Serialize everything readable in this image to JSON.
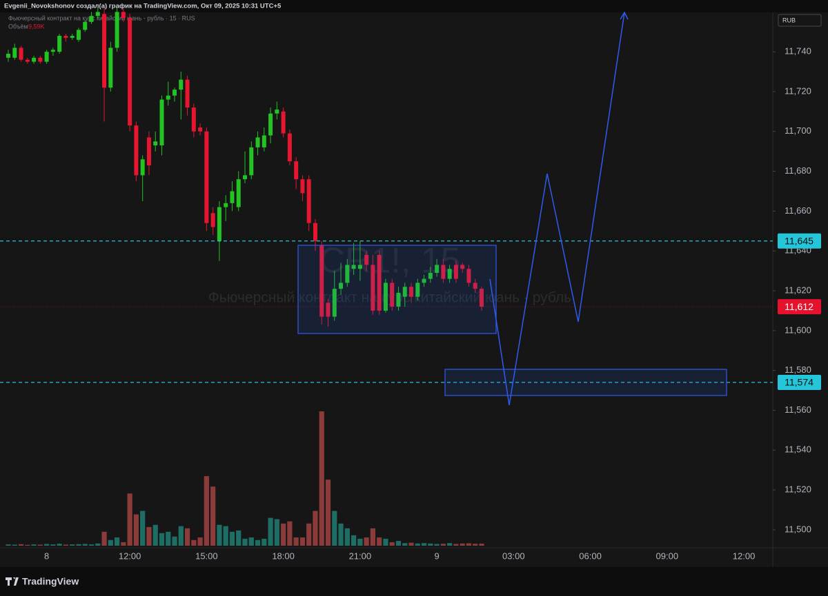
{
  "header": "Evgenii_Novokshonov создал(а) график на TradingView.com, Окт 09, 2025 10:31 UTC+5",
  "currency": "RUB",
  "brand": "TradingView",
  "chart_data": {
    "type": "candlestick",
    "title": "Фьючерсный контракт на курс китайский юань - рубль · 15 · RUS",
    "watermark_symbol": "CR1!, 15",
    "watermark_title": "Фьючерсный контракт на курс китайский юань - рубль",
    "volume_name": "Объём",
    "last_volume_label": "9,59K",
    "up_color": "#22c322",
    "down_color": "#e5162f",
    "volume_up_color": "#1f6e66",
    "volume_down_color": "#8c3b3b",
    "grid": false,
    "categories": [
      null,
      null,
      null,
      null,
      null,
      null,
      "8",
      null,
      null,
      null,
      null,
      null,
      null,
      null,
      null,
      null,
      null,
      null,
      null,
      "12:00",
      null,
      null,
      null,
      null,
      null,
      null,
      null,
      null,
      null,
      null,
      null,
      "15:00",
      null,
      null,
      null,
      null,
      null,
      null,
      null,
      null,
      null,
      null,
      null,
      "18:00",
      null,
      null,
      null,
      null,
      null,
      null,
      null,
      null,
      null,
      null,
      null,
      "21:00",
      null,
      null,
      null,
      null,
      null,
      null,
      null,
      null,
      null,
      null,
      null,
      "9",
      null,
      null,
      null,
      null,
      null,
      null,
      null
    ],
    "future_xticks": [
      "03:00",
      "06:00",
      "09:00",
      "12:00"
    ],
    "open": [
      11737,
      11737,
      11742,
      11736,
      11735,
      11737,
      11735,
      11740,
      11740,
      11748,
      11747,
      11746,
      11751,
      11755,
      11758,
      11759,
      11722,
      11742,
      11760,
      11757,
      11703,
      11678,
      11697,
      11693,
      11693,
      11716,
      11718,
      11721,
      11726,
      11712,
      11702,
      11700,
      11659,
      11645,
      11662,
      11664,
      11662,
      11676,
      11678,
      11692,
      11692,
      11698,
      11709,
      11710,
      11699,
      11685,
      11676,
      11676,
      11654,
      11643,
      11614,
      11607,
      11621,
      11624,
      11631,
      11631,
      11638,
      11633,
      11638,
      11610,
      11624,
      11612,
      11617,
      11622,
      11617,
      11624,
      11626,
      11629,
      11633,
      11626,
      11633,
      11633,
      11631,
      11624,
      11621
    ],
    "high": [
      11741,
      11744,
      11743,
      11737,
      11738,
      11738,
      11741,
      11742,
      11749,
      11749,
      11749,
      11752,
      11756,
      11760,
      11762,
      11762,
      11745,
      11762,
      11762,
      11759,
      11705,
      11688,
      11700,
      11700,
      11718,
      11725,
      11722,
      11730,
      11728,
      11714,
      11704,
      11702,
      11662,
      11665,
      11668,
      11675,
      11680,
      11690,
      11695,
      11700,
      11702,
      11712,
      11715,
      11712,
      11701,
      11687,
      11678,
      11678,
      11656,
      11645,
      11616,
      11630,
      11634,
      11636,
      11644,
      11645,
      11640,
      11638,
      11640,
      11626,
      11626,
      11622,
      11624,
      11624,
      11626,
      11628,
      11632,
      11636,
      11636,
      11633,
      11635,
      11634,
      11633,
      11626,
      11622
    ],
    "low": [
      11735,
      11736,
      11735,
      11734,
      11734,
      11734,
      11734,
      11738,
      11739,
      11745,
      11746,
      11745,
      11750,
      11754,
      11757,
      11705,
      11720,
      11740,
      11755,
      11700,
      11675,
      11665,
      11678,
      11690,
      11688,
      11713,
      11715,
      11706,
      11708,
      11697,
      11698,
      11650,
      11648,
      11635,
      11655,
      11660,
      11660,
      11674,
      11676,
      11688,
      11690,
      11694,
      11706,
      11697,
      11683,
      11671,
      11665,
      11650,
      11640,
      11603,
      11602,
      11605,
      11618,
      11622,
      11628,
      11625,
      11630,
      11608,
      11608,
      11609,
      11610,
      11610,
      11612,
      11614,
      11615,
      11622,
      11624,
      11627,
      11624,
      11624,
      11624,
      11629,
      11622,
      11619,
      11610
    ],
    "close": [
      11739,
      11742,
      11736,
      11735,
      11737,
      11735,
      11740,
      11741,
      11748,
      11747,
      11748,
      11751,
      11755,
      11758,
      11760,
      11722,
      11742,
      11760,
      11757,
      11703,
      11678,
      11686,
      11683,
      11695,
      11716,
      11718,
      11721,
      11726,
      11712,
      11700,
      11700,
      11654,
      11652,
      11662,
      11664,
      11670,
      11676,
      11678,
      11692,
      11697,
      11698,
      11709,
      11711,
      11699,
      11685,
      11676,
      11669,
      11654,
      11645,
      11607,
      11607,
      11621,
      11624,
      11633,
      11633,
      11633,
      11633,
      11610,
      11610,
      11624,
      11612,
      11619,
      11622,
      11617,
      11624,
      11626,
      11629,
      11633,
      11626,
      11631,
      11626,
      11631,
      11624,
      11621,
      11612
    ],
    "volume": [
      6,
      5,
      7,
      4,
      6,
      5,
      8,
      6,
      9,
      5,
      6,
      7,
      8,
      6,
      10,
      64,
      26,
      38,
      16,
      240,
      144,
      160,
      86,
      96,
      58,
      64,
      42,
      90,
      80,
      26,
      38,
      320,
      272,
      96,
      90,
      64,
      70,
      32,
      38,
      26,
      32,
      128,
      122,
      102,
      112,
      38,
      38,
      102,
      160,
      618,
      304,
      160,
      102,
      80,
      48,
      32,
      38,
      80,
      38,
      32,
      16,
      22,
      12,
      14,
      10,
      12,
      10,
      8,
      9,
      12,
      8,
      10,
      11,
      9,
      9.59
    ],
    "ylim": [
      11492,
      11766
    ],
    "yticks": [
      {
        "value": 11500,
        "label": "11,500"
      },
      {
        "value": 11520,
        "label": "11,520"
      },
      {
        "value": 11540,
        "label": "11,540"
      },
      {
        "value": 11560,
        "label": "11,560"
      },
      {
        "value": 11580,
        "label": "11,580"
      },
      {
        "value": 11600,
        "label": "11,600"
      },
      {
        "value": 11620,
        "label": "11,620"
      },
      {
        "value": 11640,
        "label": "11,640"
      },
      {
        "value": 11660,
        "label": "11,660"
      },
      {
        "value": 11680,
        "label": "11,680"
      },
      {
        "value": 11700,
        "label": "11,700"
      },
      {
        "value": 11720,
        "label": "11,720"
      },
      {
        "value": 11740,
        "label": "11,740"
      }
    ],
    "levels": [
      {
        "value": 11645,
        "label": "11,645"
      },
      {
        "value": 11574,
        "label": "11,574"
      }
    ],
    "level_color": "#26c6da",
    "last_price": {
      "value": 11612,
      "label": "11,612"
    },
    "last_price_color": "#e5112d"
  }
}
